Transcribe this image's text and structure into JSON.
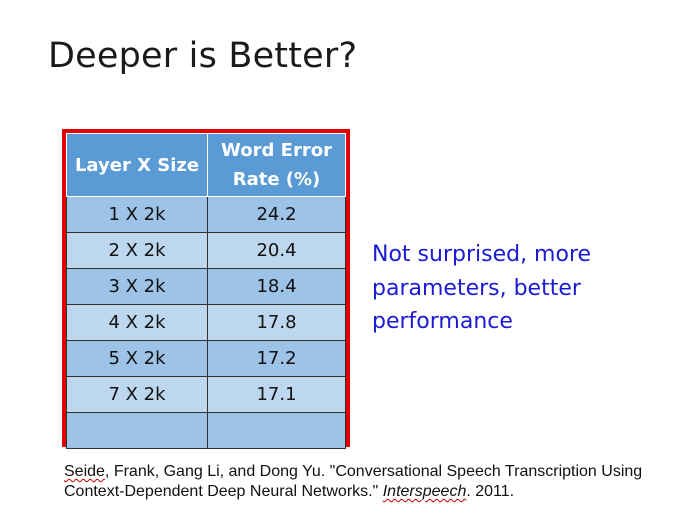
{
  "slide": {
    "title": "Deeper is Better?"
  },
  "table": {
    "headers": [
      "Layer X Size",
      "Word Error Rate (%)"
    ],
    "rows": [
      [
        "1 X 2k",
        "24.2"
      ],
      [
        "2 X 2k",
        "20.4"
      ],
      [
        "3 X 2k",
        "18.4"
      ],
      [
        "4 X 2k",
        "17.8"
      ],
      [
        "5 X 2k",
        "17.2"
      ],
      [
        "7 X 2k",
        "17.1"
      ],
      [
        "",
        ""
      ]
    ],
    "frame_color": "#e00000",
    "header_color": "#5b9bd5",
    "row_color": "#9dc3e6"
  },
  "note": {
    "text": "Not surprised, more parameters, better performance",
    "color": "#1b1bd6"
  },
  "citation": {
    "author_first": "Seide",
    "text_1": ", Frank, Gang Li, and Dong Yu. \"Conversational Speech Transcription Using Context-Dependent Deep Neural Networks.\" ",
    "venue": "Interspeech",
    "text_2": ". 2011."
  }
}
